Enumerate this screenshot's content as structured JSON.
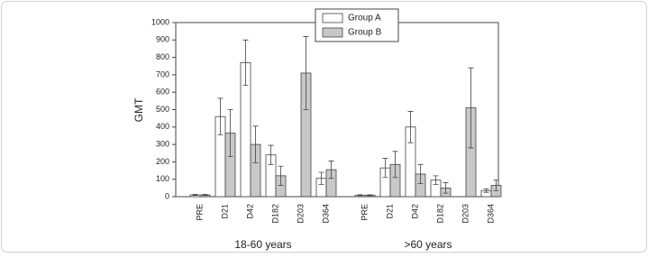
{
  "chart_data": {
    "type": "bar",
    "y_label": "GMT",
    "groups": [
      {
        "label": "18-60 years",
        "categories": [
          "PRE",
          "D21",
          "D42",
          "D182",
          "D203",
          "D364"
        ]
      },
      {
        "label": ">60 years",
        "categories": [
          "PRE",
          "D21",
          "D42",
          "D182",
          "D203",
          "D364"
        ]
      }
    ],
    "series": [
      {
        "name": "Group A",
        "color": "#ffffff",
        "values": [
          10,
          460,
          770,
          240,
          null,
          105,
          8,
          165,
          400,
          95,
          null,
          35
        ],
        "errors": [
          3,
          105,
          130,
          55,
          null,
          35,
          3,
          55,
          90,
          25,
          null,
          10
        ]
      },
      {
        "name": "Group B",
        "color": "#c8c8c8",
        "values": [
          10,
          365,
          300,
          120,
          710,
          155,
          8,
          185,
          130,
          50,
          510,
          65
        ],
        "errors": [
          3,
          135,
          105,
          55,
          210,
          50,
          3,
          75,
          55,
          30,
          230,
          30
        ]
      }
    ],
    "ylim": [
      0,
      1000
    ],
    "yticks": [
      0,
      100,
      200,
      300,
      400,
      500,
      600,
      700,
      800,
      900,
      1000
    ],
    "legend": "upper center"
  }
}
